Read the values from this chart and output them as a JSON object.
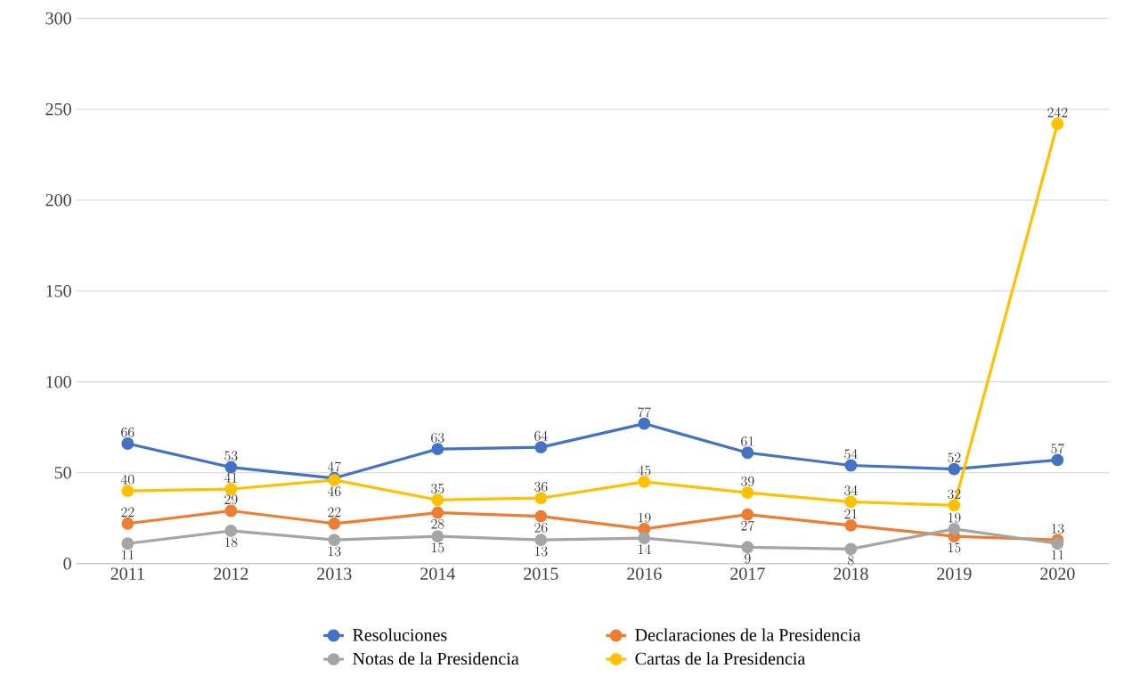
{
  "chart_data": {
    "type": "line",
    "categories": [
      "2011",
      "2012",
      "2013",
      "2014",
      "2015",
      "2016",
      "2017",
      "2018",
      "2019",
      "2020"
    ],
    "series": [
      {
        "name": "Resoluciones",
        "color": "#4472c4",
        "values": [
          66,
          53,
          47,
          63,
          64,
          77,
          61,
          54,
          52,
          57
        ]
      },
      {
        "name": "Declaraciones de la Presidencia",
        "color": "#ed7d31",
        "values": [
          22,
          29,
          22,
          28,
          26,
          19,
          27,
          21,
          15,
          13
        ]
      },
      {
        "name": "Notas de la Presidencia",
        "color": "#a5a5a5",
        "values": [
          11,
          18,
          13,
          15,
          13,
          14,
          9,
          8,
          19,
          11
        ]
      },
      {
        "name": "Cartas de la Presidencia",
        "color": "#ffc000",
        "values": [
          40,
          41,
          46,
          35,
          36,
          45,
          39,
          34,
          32,
          242
        ]
      }
    ],
    "ylim": [
      0,
      300
    ],
    "yticks": [
      0,
      50,
      100,
      150,
      200,
      250,
      300
    ],
    "grid": "y",
    "legend": "bottom",
    "marker": "circle",
    "line_style": "solid",
    "data_labels": true
  }
}
